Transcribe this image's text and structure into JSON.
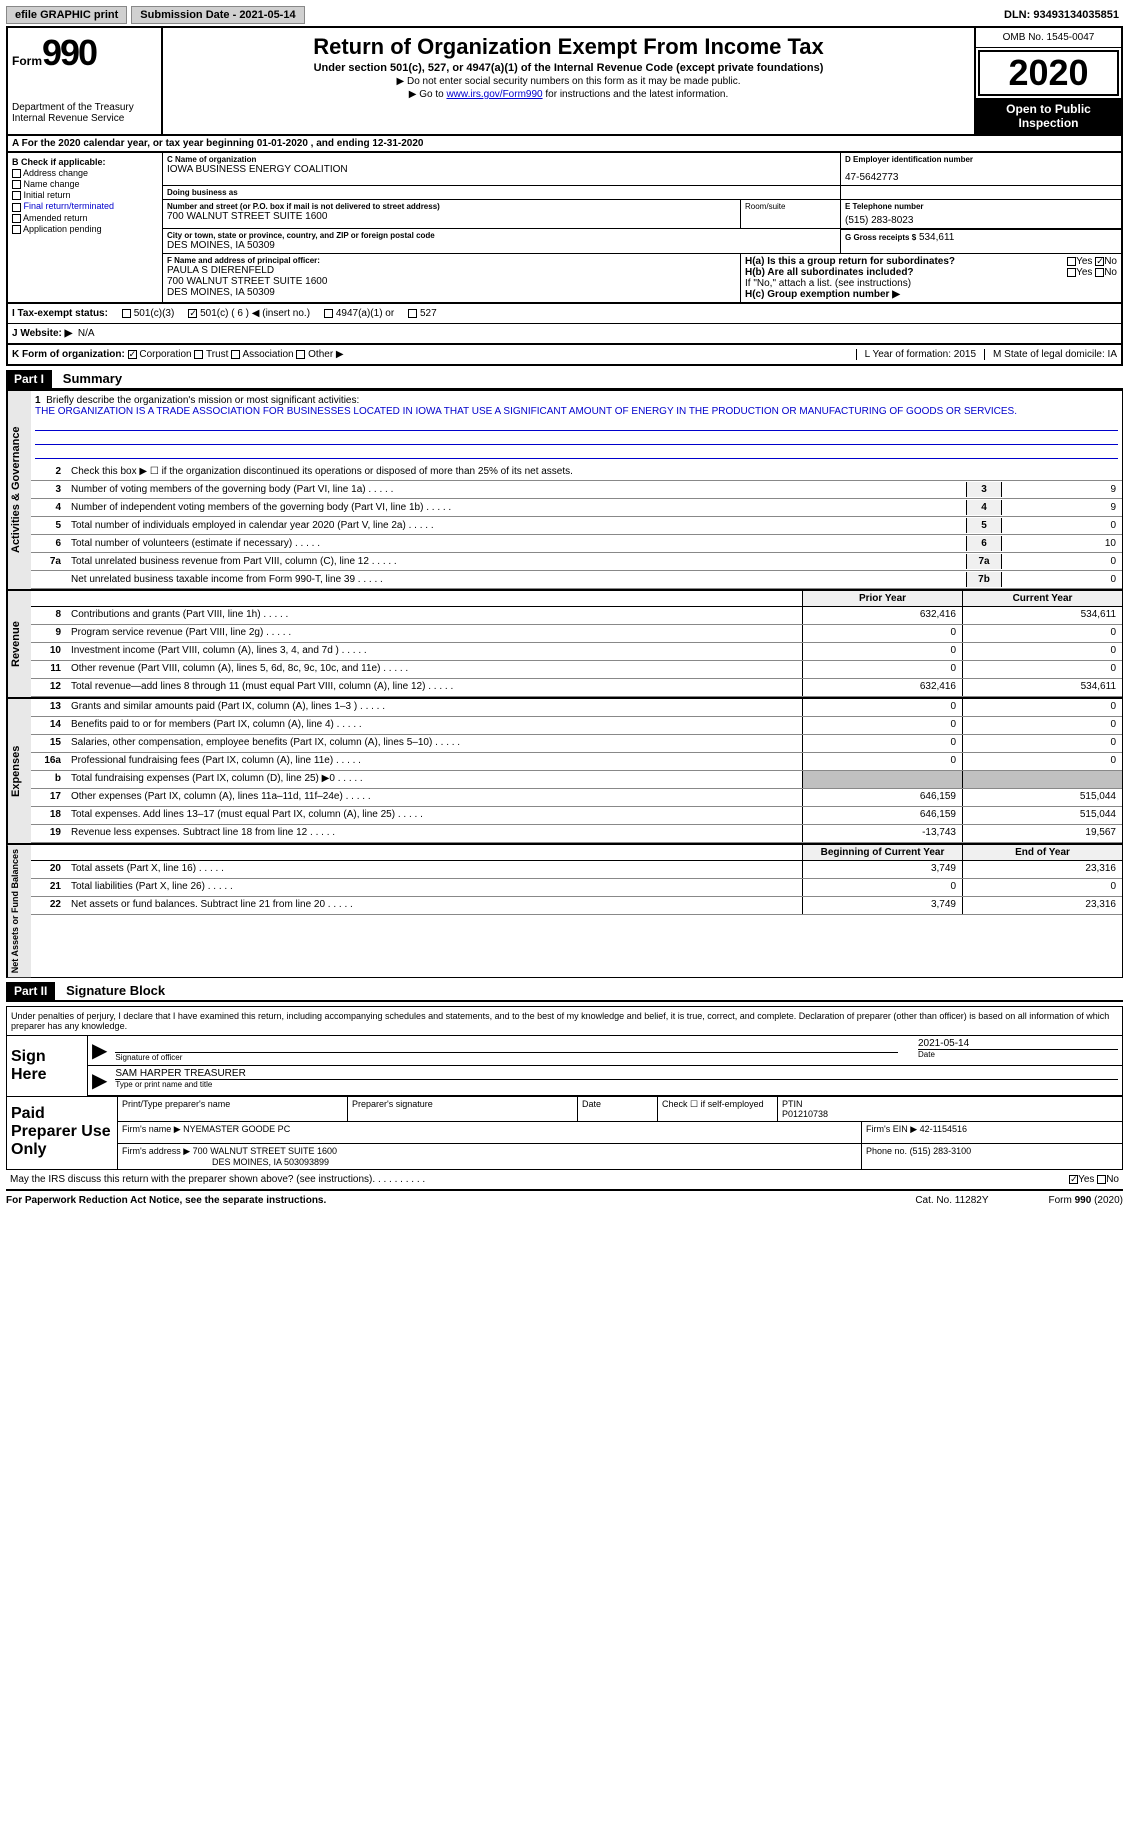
{
  "topbar": {
    "efile": "efile GRAPHIC print",
    "submission": "Submission Date - 2021-05-14",
    "dln": "DLN: 93493134035851"
  },
  "header": {
    "form_word": "Form",
    "form_num": "990",
    "dept": "Department of the Treasury Internal Revenue Service",
    "title": "Return of Organization Exempt From Income Tax",
    "subtitle": "Under section 501(c), 527, or 4947(a)(1) of the Internal Revenue Code (except private foundations)",
    "inst1": "▶ Do not enter social security numbers on this form as it may be made public.",
    "inst2": "▶ Go to ",
    "inst2_link": "www.irs.gov/Form990",
    "inst2_tail": " for instructions and the latest information.",
    "omb": "OMB No. 1545-0047",
    "year": "2020",
    "open": "Open to Public Inspection"
  },
  "period": "For the 2020 calendar year, or tax year beginning 01-01-2020    , and ending 12-31-2020",
  "section_b": {
    "label": "B Check if applicable:",
    "items": [
      "Address change",
      "Name change",
      "Initial return",
      "Final return/terminated",
      "Amended return",
      "Application pending"
    ]
  },
  "org": {
    "name_label": "C Name of organization",
    "name": "IOWA BUSINESS ENERGY COALITION",
    "dba_label": "Doing business as",
    "dba": "",
    "addr_label": "Number and street (or P.O. box if mail is not delivered to street address)",
    "addr": "700 WALNUT STREET SUITE 1600",
    "room_label": "Room/suite",
    "city_label": "City or town, state or province, country, and ZIP or foreign postal code",
    "city": "DES MOINES, IA   50309"
  },
  "ein": {
    "label": "D Employer identification number",
    "value": "47-5642773"
  },
  "tel": {
    "label": "E Telephone number",
    "value": "(515) 283-8023"
  },
  "gross": {
    "label": "G Gross receipts $",
    "value": "534,611"
  },
  "officer": {
    "label": "F  Name and address of principal officer:",
    "name": "PAULA S DIERENFELD",
    "addr1": "700 WALNUT STREET SUITE 1600",
    "addr2": "DES MOINES, IA   50309"
  },
  "h": {
    "a_label": "H(a)  Is this a group return for subordinates?",
    "b_label": "H(b)  Are all subordinates included?",
    "b_note": "If \"No,\" attach a list. (see instructions)",
    "c_label": "H(c)  Group exemption number ▶"
  },
  "i_label": "I    Tax-exempt status:",
  "i_opts": [
    "501(c)(3)",
    "501(c) ( 6 ) ◀ (insert no.)",
    "4947(a)(1) or",
    "527"
  ],
  "j_label": "J   Website: ▶",
  "j_val": "N/A",
  "k_label": "K Form of organization:",
  "k_opts": [
    "Corporation",
    "Trust",
    "Association",
    "Other ▶"
  ],
  "l_label": "L Year of formation: 2015",
  "m_label": "M State of legal domicile: IA",
  "part1": "Part I",
  "part1_title": "Summary",
  "part2": "Part II",
  "part2_title": "Signature Block",
  "vert_labels": {
    "gov": "Activities & Governance",
    "rev": "Revenue",
    "exp": "Expenses",
    "net": "Net Assets or Fund Balances"
  },
  "gov_rows": {
    "r1_num": "1",
    "r1_desc": "Briefly describe the organization's mission or most significant activities:",
    "r1_mission": "THE ORGANIZATION IS A TRADE ASSOCIATION FOR BUSINESSES LOCATED IN IOWA THAT USE A SIGNIFICANT AMOUNT OF ENERGY IN THE PRODUCTION OR MANUFACTURING OF GOODS OR SERVICES.",
    "r2_num": "2",
    "r2_desc": "Check this box ▶ ☐  if the organization discontinued its operations or disposed of more than 25% of its net assets.",
    "r3": {
      "num": "3",
      "desc": "Number of voting members of the governing body (Part VI, line 1a)",
      "box": "3",
      "val": "9"
    },
    "r4": {
      "num": "4",
      "desc": "Number of independent voting members of the governing body (Part VI, line 1b)",
      "box": "4",
      "val": "9"
    },
    "r5": {
      "num": "5",
      "desc": "Total number of individuals employed in calendar year 2020 (Part V, line 2a)",
      "box": "5",
      "val": "0"
    },
    "r6": {
      "num": "6",
      "desc": "Total number of volunteers (estimate if necessary)",
      "box": "6",
      "val": "10"
    },
    "r7a": {
      "num": "7a",
      "desc": "Total unrelated business revenue from Part VIII, column (C), line 12",
      "box": "7a",
      "val": "0"
    },
    "r7b": {
      "num": "",
      "desc": "Net unrelated business taxable income from Form 990-T, line 39",
      "box": "7b",
      "val": "0"
    }
  },
  "col_headers": {
    "prior": "Prior Year",
    "current": "Current Year",
    "begin": "Beginning of Current Year",
    "end": "End of Year"
  },
  "rev_rows": [
    {
      "num": "8",
      "desc": "Contributions and grants (Part VIII, line 1h)",
      "prior": "632,416",
      "curr": "534,611"
    },
    {
      "num": "9",
      "desc": "Program service revenue (Part VIII, line 2g)",
      "prior": "0",
      "curr": "0"
    },
    {
      "num": "10",
      "desc": "Investment income (Part VIII, column (A), lines 3, 4, and 7d )",
      "prior": "0",
      "curr": "0"
    },
    {
      "num": "11",
      "desc": "Other revenue (Part VIII, column (A), lines 5, 6d, 8c, 9c, 10c, and 11e)",
      "prior": "0",
      "curr": "0"
    },
    {
      "num": "12",
      "desc": "Total revenue—add lines 8 through 11 (must equal Part VIII, column (A), line 12)",
      "prior": "632,416",
      "curr": "534,611"
    }
  ],
  "exp_rows": [
    {
      "num": "13",
      "desc": "Grants and similar amounts paid (Part IX, column (A), lines 1–3 )",
      "prior": "0",
      "curr": "0"
    },
    {
      "num": "14",
      "desc": "Benefits paid to or for members (Part IX, column (A), line 4)",
      "prior": "0",
      "curr": "0"
    },
    {
      "num": "15",
      "desc": "Salaries, other compensation, employee benefits (Part IX, column (A), lines 5–10)",
      "prior": "0",
      "curr": "0"
    },
    {
      "num": "16a",
      "desc": "Professional fundraising fees (Part IX, column (A), line 11e)",
      "prior": "0",
      "curr": "0"
    },
    {
      "num": "b",
      "desc": "Total fundraising expenses (Part IX, column (D), line 25) ▶0",
      "prior": "shaded",
      "curr": "shaded"
    },
    {
      "num": "17",
      "desc": "Other expenses (Part IX, column (A), lines 11a–11d, 11f–24e)",
      "prior": "646,159",
      "curr": "515,044"
    },
    {
      "num": "18",
      "desc": "Total expenses. Add lines 13–17 (must equal Part IX, column (A), line 25)",
      "prior": "646,159",
      "curr": "515,044"
    },
    {
      "num": "19",
      "desc": "Revenue less expenses. Subtract line 18 from line 12",
      "prior": "-13,743",
      "curr": "19,567"
    }
  ],
  "net_rows": [
    {
      "num": "20",
      "desc": "Total assets (Part X, line 16)",
      "prior": "3,749",
      "curr": "23,316"
    },
    {
      "num": "21",
      "desc": "Total liabilities (Part X, line 26)",
      "prior": "0",
      "curr": "0"
    },
    {
      "num": "22",
      "desc": "Net assets or fund balances. Subtract line 21 from line 20",
      "prior": "3,749",
      "curr": "23,316"
    }
  ],
  "penalties": "Under penalties of perjury, I declare that I have examined this return, including accompanying schedules and statements, and to the best of my knowledge and belief, it is true, correct, and complete. Declaration of preparer (other than officer) is based on all information of which preparer has any knowledge.",
  "sign": {
    "label": "Sign Here",
    "sig_label": "Signature of officer",
    "date_label": "Date",
    "date": "2021-05-14",
    "name": "SAM HARPER  TREASURER",
    "name_label": "Type or print name and title"
  },
  "preparer": {
    "label": "Paid Preparer Use Only",
    "h1": "Print/Type preparer's name",
    "h2": "Preparer's signature",
    "h3": "Date",
    "h4_check": "Check ☐ if self-employed",
    "h4_ptin": "PTIN",
    "ptin": "P01210738",
    "firm_label": "Firm's name    ▶",
    "firm": "NYEMASTER GOODE PC",
    "ein_label": "Firm's EIN ▶",
    "ein": "42-1154516",
    "addr_label": "Firm's address ▶",
    "addr1": "700 WALNUT STREET SUITE 1600",
    "addr2": "DES MOINES, IA   503093899",
    "phone_label": "Phone no.",
    "phone": "(515) 283-3100"
  },
  "discuss": "May the IRS discuss this return with the preparer shown above? (see instructions)",
  "footer": {
    "left": "For Paperwork Reduction Act Notice, see the separate instructions.",
    "mid": "Cat. No. 11282Y",
    "right": "Form 990 (2020)"
  }
}
